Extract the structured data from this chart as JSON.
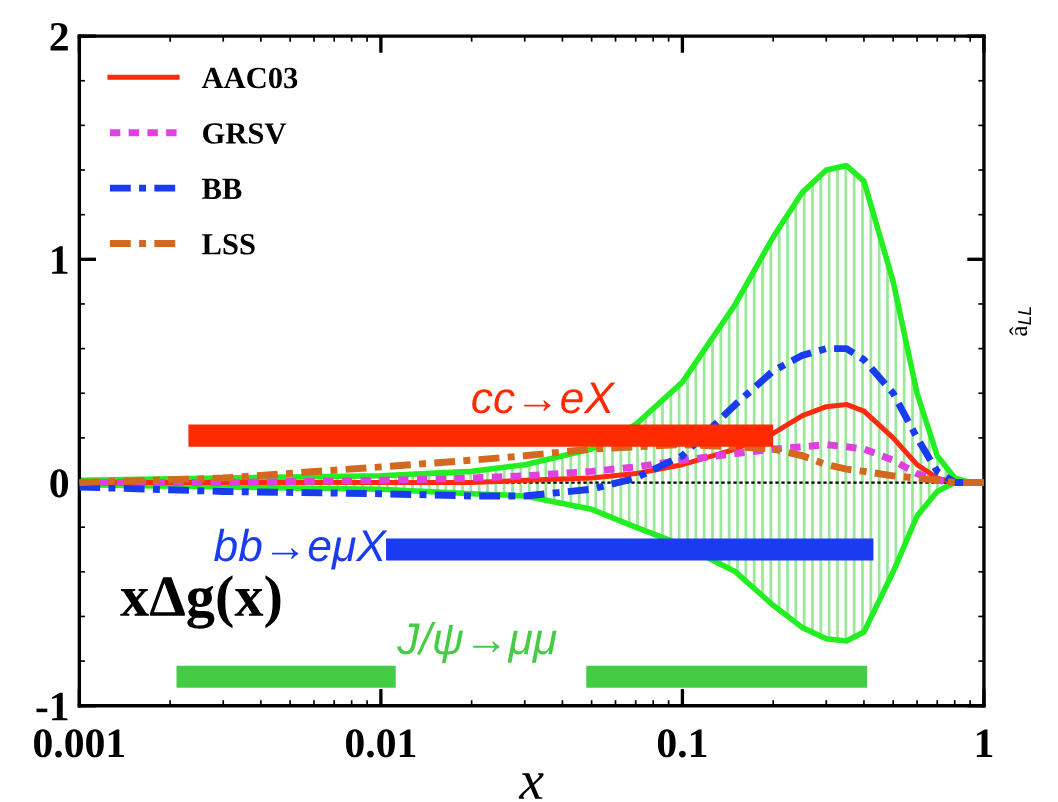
{
  "chart_data": {
    "type": "line",
    "xlabel": "x",
    "ylabel": "xΔg(x)",
    "log": "x",
    "xlim": [
      0.001,
      1
    ],
    "xticks": [
      {
        "value": 0.001,
        "label": "0.001"
      },
      {
        "value": 0.01,
        "label": "0.01"
      },
      {
        "value": 0.1,
        "label": "0.1"
      },
      1
    ],
    "ylim": [
      -1,
      2
    ],
    "yticks": [
      -1,
      0,
      1,
      2
    ],
    "legend": "top left",
    "annotations": [
      "â$_{LL}$"
    ],
    "ref_lines": [
      {
        "axis": "y",
        "value": 0,
        "color": "#000000",
        "line_style": "dotted"
      }
    ],
    "x": [
      0.001,
      0.003,
      0.01,
      0.02,
      0.03,
      0.05,
      0.07,
      0.1,
      0.15,
      0.2,
      0.25,
      0.3,
      0.35,
      0.4,
      0.5,
      0.6,
      0.7,
      0.8,
      0.9,
      1
    ],
    "series": [
      {
        "name": "AAC03",
        "color": "#ff2a10",
        "line_style": "solid",
        "values": [
          0,
          0,
          0,
          0,
          0.01,
          0.02,
          0.04,
          0.08,
          0.15,
          0.22,
          0.3,
          0.34,
          0.35,
          0.32,
          0.2,
          0.08,
          0.02,
          0,
          0,
          0
        ],
        "upper": [
          0.01,
          0.02,
          0.03,
          0.05,
          0.08,
          0.15,
          0.26,
          0.45,
          0.8,
          1.1,
          1.3,
          1.4,
          1.42,
          1.35,
          0.9,
          0.4,
          0.12,
          0.02,
          0,
          0
        ],
        "lower": [
          -0.01,
          -0.02,
          -0.03,
          -0.05,
          -0.06,
          -0.12,
          -0.2,
          -0.28,
          -0.4,
          -0.55,
          -0.65,
          -0.7,
          -0.71,
          -0.67,
          -0.4,
          -0.15,
          -0.04,
          0,
          0,
          0
        ]
      },
      {
        "name": "GRSV",
        "color": "#e040e0",
        "line_style": "dotted",
        "values": [
          0,
          0,
          0.01,
          0.02,
          0.03,
          0.05,
          0.07,
          0.1,
          0.13,
          0.15,
          0.16,
          0.17,
          0.16,
          0.15,
          0.1,
          0.04,
          0.01,
          0,
          0,
          0
        ]
      },
      {
        "name": "BB",
        "color": "#1a3cf0",
        "line_style": "dashdot",
        "values": [
          -0.02,
          -0.04,
          -0.05,
          -0.06,
          -0.06,
          -0.03,
          0.02,
          0.12,
          0.35,
          0.5,
          0.57,
          0.6,
          0.6,
          0.55,
          0.4,
          0.2,
          0.05,
          0,
          0,
          0
        ]
      },
      {
        "name": "LSS",
        "color": "#d2691e",
        "line_style": "dashdot",
        "values": [
          0,
          0.02,
          0.07,
          0.1,
          0.12,
          0.15,
          0.16,
          0.17,
          0.16,
          0.15,
          0.12,
          0.08,
          0.06,
          0.05,
          0.03,
          0.02,
          0.01,
          0,
          0,
          0
        ]
      },
      {
        "name": "cc→eX",
        "color": "#ff2a00",
        "line_style": "solid",
        "x": [
          0.0023,
          0.2
        ],
        "values": [
          0.21,
          0.21
        ]
      },
      {
        "name": "bb→eμX",
        "color": "#1a3cf0",
        "line_style": "solid",
        "x": [
          0.0104,
          0.43
        ],
        "values": [
          -0.3,
          -0.3
        ]
      },
      {
        "name": "J/ψ→μμ",
        "color": "#44cc44",
        "line_style": "solid",
        "x": [
          0.0021,
          0.0112,
          0.03,
          0.048,
          0.41
        ],
        "values": [
          -0.87,
          -0.87,
          null,
          -0.87,
          -0.87
        ]
      }
    ]
  }
}
